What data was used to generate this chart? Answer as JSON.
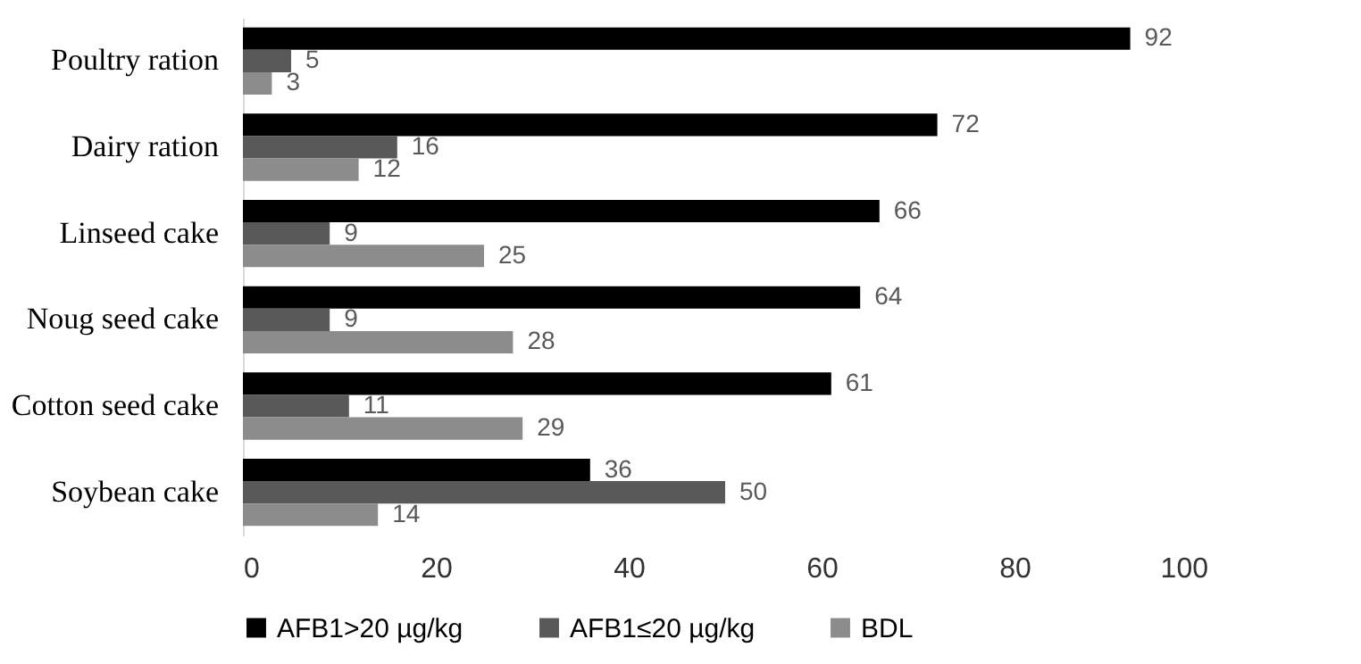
{
  "chart_data": {
    "type": "bar",
    "orientation": "horizontal",
    "categories": [
      "Poultry ration",
      "Dairy ration",
      "Linseed cake",
      "Noug seed cake",
      "Cotton seed cake",
      "Soybean cake"
    ],
    "series": [
      {
        "name": "AFB1>20 µg/kg",
        "color": "#000000",
        "values": [
          92,
          72,
          66,
          64,
          61,
          36
        ]
      },
      {
        "name": "AFB1≤20 µg/kg",
        "color": "#595959",
        "values": [
          5,
          16,
          9,
          9,
          11,
          50
        ]
      },
      {
        "name": "BDL",
        "color": "#8c8c8c",
        "values": [
          3,
          12,
          25,
          28,
          29,
          14
        ]
      }
    ],
    "xlim": [
      0,
      100
    ],
    "xticks": [
      0,
      20,
      40,
      60,
      80,
      100
    ],
    "data_labels": true,
    "legend": "bottom",
    "grid": false
  }
}
